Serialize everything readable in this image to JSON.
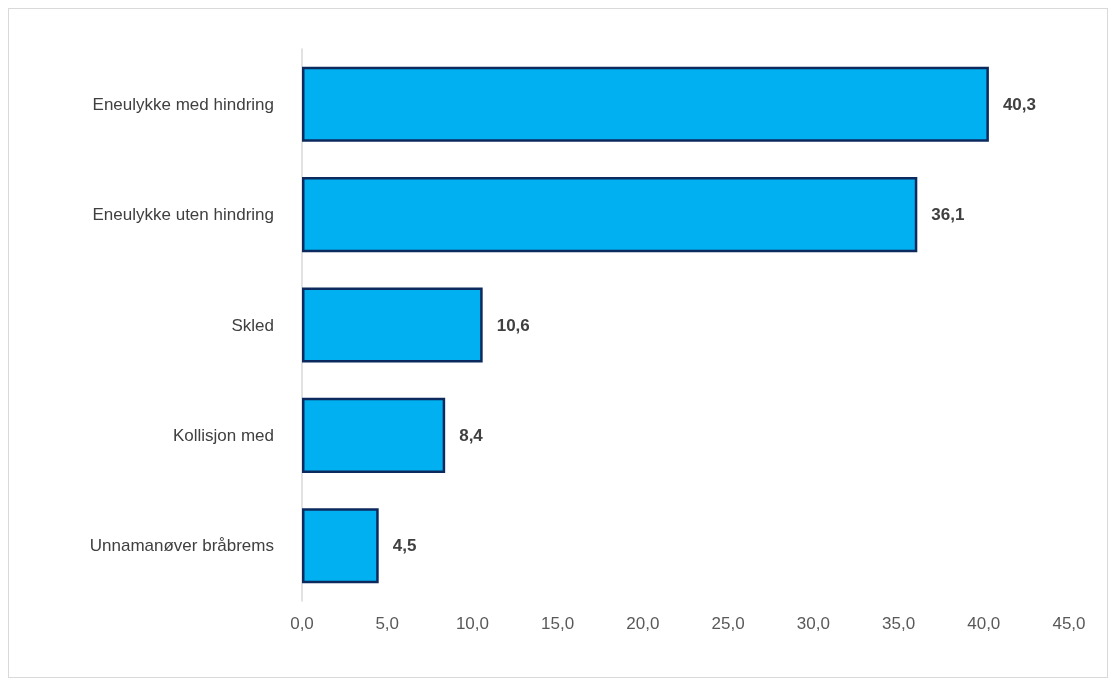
{
  "chart_data": {
    "type": "bar",
    "orientation": "horizontal",
    "categories": [
      "Eneulykke med hindring",
      "Eneulykke uten hindring",
      "Skled",
      "Kollisjon med",
      "Unnamanøver bråbrems"
    ],
    "values": [
      40.3,
      36.1,
      10.6,
      8.4,
      4.5
    ],
    "value_labels": [
      "40,3",
      "36,1",
      "10,6",
      "8,4",
      "4,5"
    ],
    "color": "#00b0f0",
    "xlim": [
      0,
      45
    ],
    "xticks": [
      {
        "value": 0,
        "label": "0,0"
      },
      {
        "value": 5,
        "label": "5,0"
      },
      {
        "value": 10,
        "label": "10,0"
      },
      {
        "value": 15,
        "label": "15,0"
      },
      {
        "value": 20,
        "label": "20,0"
      },
      {
        "value": 25,
        "label": "25,0"
      },
      {
        "value": 30,
        "label": "30,0"
      },
      {
        "value": 35,
        "label": "35,0"
      },
      {
        "value": 40,
        "label": "40,0"
      },
      {
        "value": 45,
        "label": "45,0"
      }
    ],
    "grid": false
  }
}
